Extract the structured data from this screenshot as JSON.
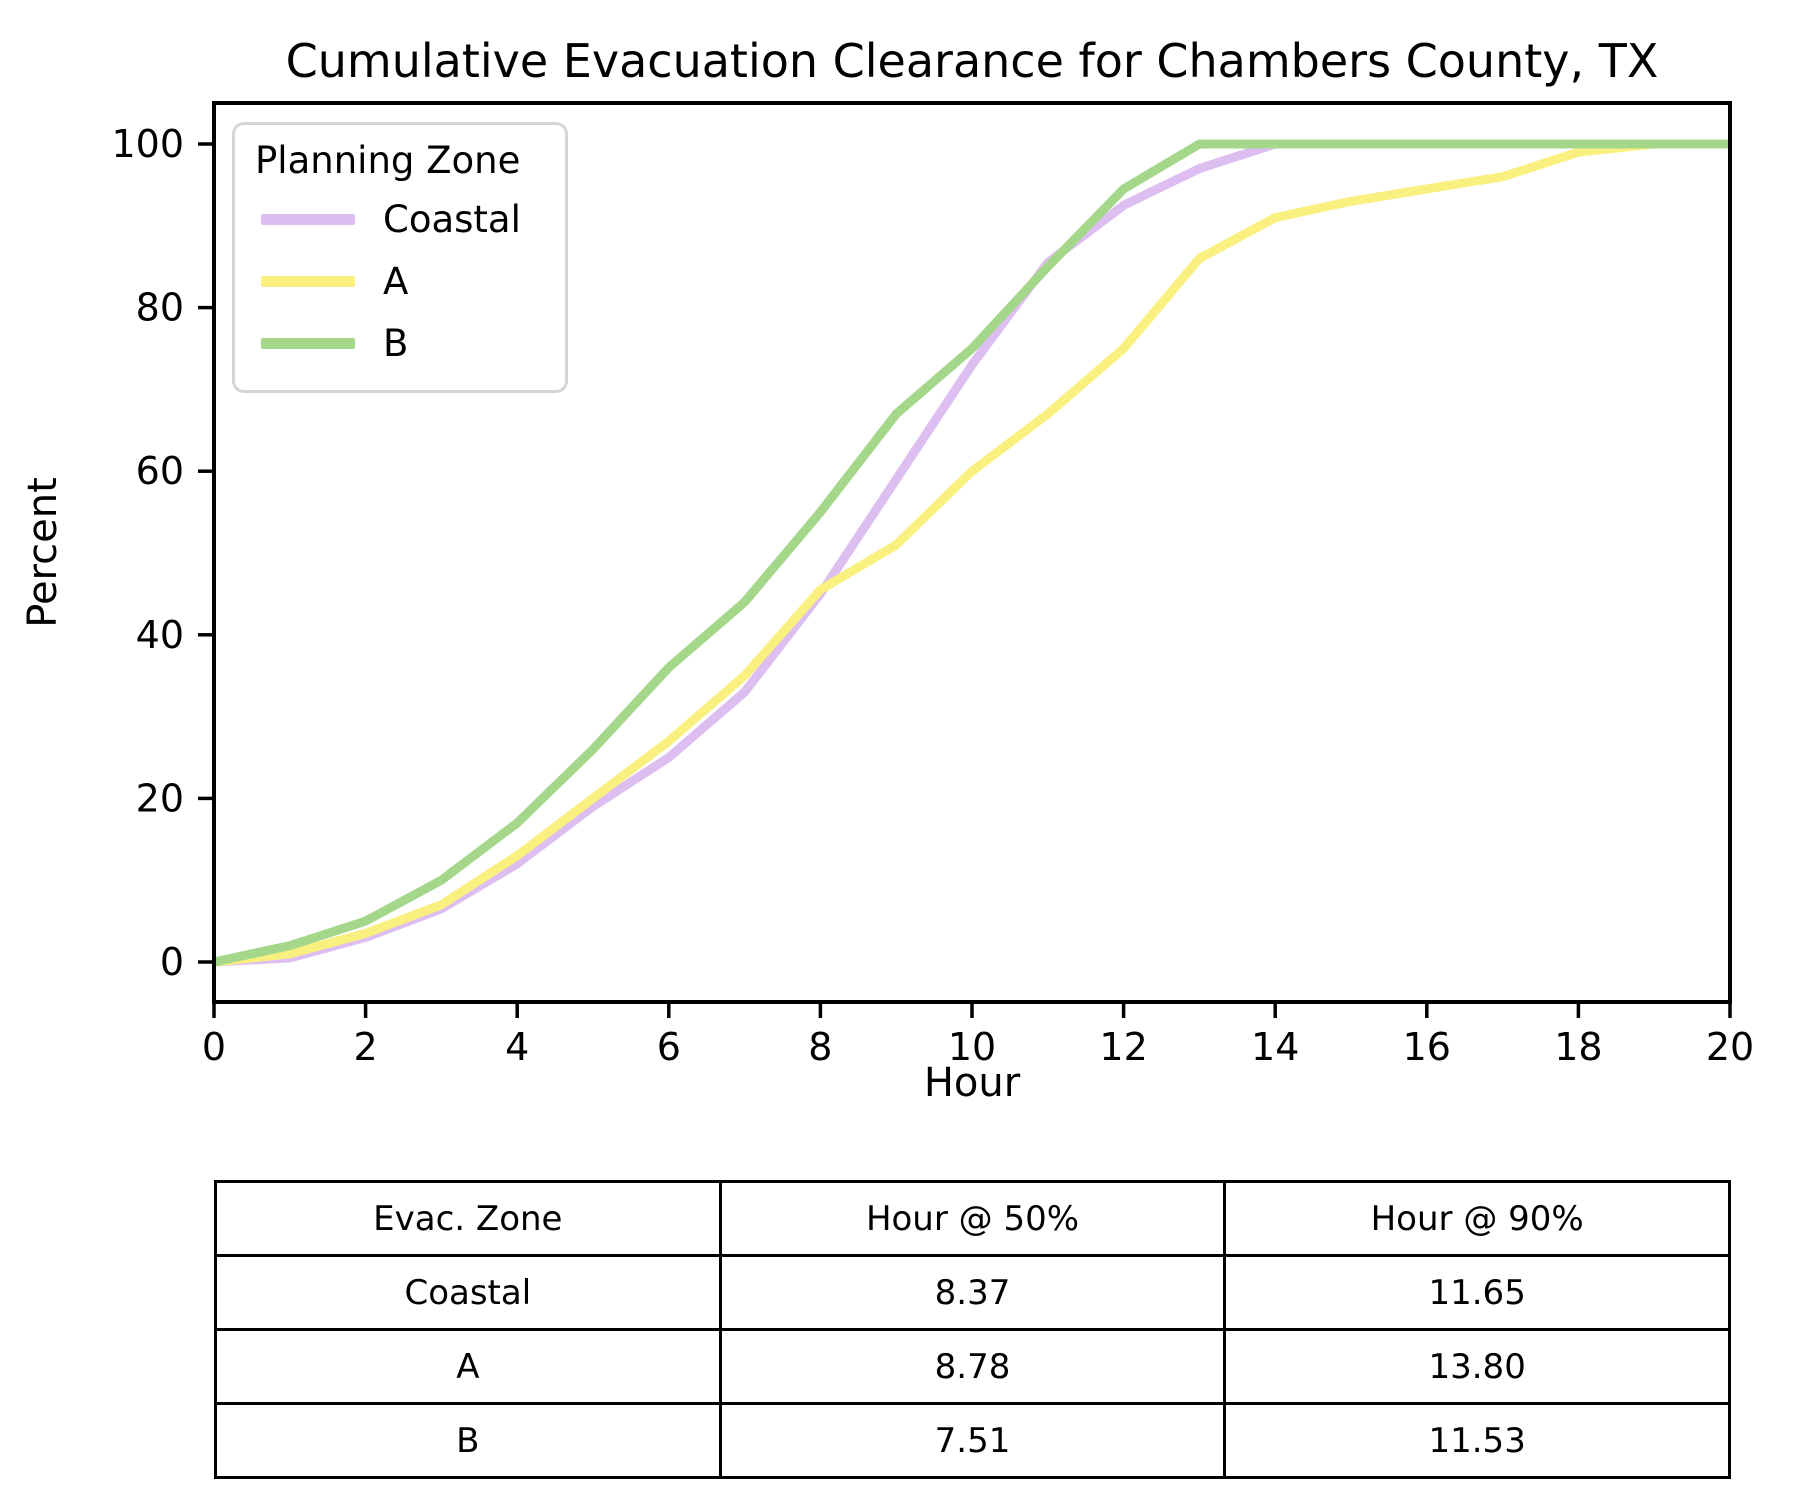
{
  "title": "Cumulative Evacuation Clearance for Chambers County, TX",
  "chart_data": {
    "type": "line",
    "title": "Cumulative Evacuation Clearance for Chambers County, TX",
    "xlabel": "Hour",
    "ylabel": "Percent",
    "xlim": [
      0,
      20
    ],
    "ylim": [
      0,
      100
    ],
    "grid": false,
    "x_ticks": [
      0,
      2,
      4,
      6,
      8,
      10,
      12,
      14,
      16,
      18,
      20
    ],
    "y_ticks": [
      0,
      20,
      40,
      60,
      80,
      100
    ],
    "legend": {
      "title": "Planning Zone",
      "position": "upper left"
    },
    "x": [
      0,
      1,
      2,
      3,
      4,
      5,
      6,
      7,
      8,
      9,
      10,
      11,
      12,
      13,
      14,
      15,
      16,
      17,
      18,
      19,
      20
    ],
    "series": [
      {
        "name": "Coastal",
        "color": "#ddbef1",
        "values": [
          0,
          0.5,
          3,
          6.5,
          12,
          19,
          25,
          33,
          45,
          59,
          73,
          85.5,
          92.5,
          97,
          100,
          100,
          100,
          100,
          100,
          100,
          100
        ]
      },
      {
        "name": "A",
        "color": "#faf07f",
        "values": [
          0,
          1,
          3.5,
          7,
          13,
          20,
          27,
          35,
          45.5,
          51,
          60,
          67,
          75,
          86,
          91,
          93,
          94.5,
          96,
          99,
          100,
          100
        ]
      },
      {
        "name": "B",
        "color": "#a5d78b",
        "values": [
          0,
          2,
          5,
          10,
          17,
          26,
          36,
          44,
          55,
          67,
          75,
          85,
          94.5,
          100,
          100,
          100,
          100,
          100,
          100,
          100,
          100
        ]
      }
    ]
  },
  "table": {
    "headers": [
      "Evac. Zone",
      "Hour @ 50%",
      "Hour @ 90%"
    ],
    "rows": [
      [
        "Coastal",
        "8.37",
        "11.65"
      ],
      [
        "A",
        "8.78",
        "13.80"
      ],
      [
        "B",
        "7.51",
        "11.53"
      ]
    ]
  }
}
